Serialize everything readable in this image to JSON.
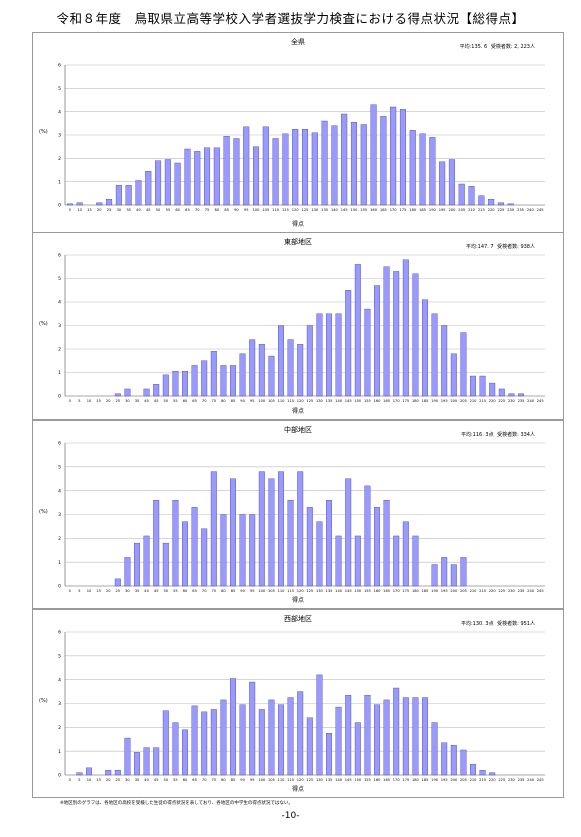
{
  "page": {
    "title": "令和８年度　鳥取県立高等学校入学者選抜学力検査における得点状況【総得点】",
    "footnote": "※地区別のグラフは、各地区の高校を受検した生徒の得点状況を表しており、各地区の中学生の得点状況ではない。",
    "page_number": "-10-"
  },
  "bar_color": "#9999ff",
  "bar_stroke": "#333399",
  "chart_data": [
    {
      "type": "bar",
      "title": "全県",
      "average_label": "平均:135. 6",
      "count_label": "受検者数: 2, 223人",
      "xlabel": "得点",
      "ylabel": "(%)",
      "ylim": [
        0,
        6
      ],
      "yticks": [
        0,
        1,
        2,
        3,
        4,
        5,
        6
      ],
      "categories": [
        "5",
        "10",
        "15",
        "20",
        "25",
        "30",
        "35",
        "40",
        "45",
        "50",
        "55",
        "60",
        "65",
        "70",
        "75",
        "80",
        "85",
        "90",
        "95",
        "100",
        "105",
        "110",
        "115",
        "120",
        "125",
        "130",
        "135",
        "140",
        "145",
        "150",
        "155",
        "160",
        "165",
        "170",
        "175",
        "180",
        "185",
        "190",
        "195",
        "200",
        "205",
        "210",
        "215",
        "220",
        "225",
        "230",
        "235",
        "240",
        "245"
      ],
      "values": [
        0.05,
        0.1,
        0,
        0.1,
        0.25,
        0.85,
        0.85,
        1.05,
        1.45,
        1.9,
        1.95,
        1.8,
        2.4,
        2.3,
        2.45,
        2.45,
        2.95,
        2.85,
        3.35,
        2.5,
        3.35,
        2.85,
        3.05,
        3.25,
        3.25,
        3.1,
        3.6,
        3.4,
        3.9,
        3.55,
        3.45,
        4.3,
        3.8,
        4.2,
        4.1,
        3.2,
        3.05,
        2.9,
        1.85,
        1.95,
        0.9,
        0.8,
        0.4,
        0.25,
        0.1,
        0.05,
        0,
        0,
        0
      ]
    },
    {
      "type": "bar",
      "title": "東部地区",
      "average_label": "平均:147. 7",
      "count_label": "受検者数: 938人",
      "xlabel": "得点",
      "ylabel": "(%)",
      "ylim": [
        0,
        6
      ],
      "yticks": [
        0,
        1,
        2,
        3,
        4,
        5,
        6
      ],
      "categories": [
        "0",
        "5",
        "10",
        "15",
        "20",
        "25",
        "30",
        "35",
        "40",
        "45",
        "50",
        "55",
        "60",
        "65",
        "70",
        "75",
        "80",
        "85",
        "90",
        "95",
        "100",
        "105",
        "110",
        "115",
        "120",
        "125",
        "130",
        "135",
        "140",
        "145",
        "150",
        "155",
        "160",
        "165",
        "170",
        "175",
        "180",
        "185",
        "190",
        "195",
        "200",
        "205",
        "210",
        "215",
        "220",
        "225",
        "230",
        "235",
        "240",
        "245"
      ],
      "values": [
        0,
        0,
        0,
        0,
        0,
        0.1,
        0.3,
        0,
        0.3,
        0.5,
        0.9,
        1.05,
        1.05,
        1.3,
        1.5,
        1.9,
        1.3,
        1.3,
        1.8,
        2.4,
        2.2,
        1.7,
        3.0,
        2.4,
        2.2,
        3.0,
        3.5,
        3.5,
        3.5,
        4.5,
        5.6,
        3.7,
        4.7,
        5.5,
        5.3,
        5.8,
        5.2,
        4.1,
        3.5,
        3.0,
        1.8,
        2.7,
        0.85,
        0.85,
        0.55,
        0.3,
        0.1,
        0.1,
        0,
        0
      ]
    },
    {
      "type": "bar",
      "title": "中部地区",
      "average_label": "平均:116. 3点",
      "count_label": "受検者数: 334人",
      "xlabel": "得点",
      "ylabel": "(%)",
      "ylim": [
        0,
        6
      ],
      "yticks": [
        0,
        1,
        2,
        3,
        4,
        5,
        6
      ],
      "categories": [
        "0",
        "5",
        "10",
        "15",
        "20",
        "25",
        "30",
        "35",
        "40",
        "45",
        "50",
        "55",
        "60",
        "65",
        "70",
        "75",
        "80",
        "85",
        "90",
        "95",
        "100",
        "105",
        "110",
        "115",
        "120",
        "125",
        "130",
        "135",
        "140",
        "145",
        "150",
        "155",
        "160",
        "165",
        "170",
        "175",
        "180",
        "185",
        "190",
        "195",
        "200",
        "205",
        "210",
        "215",
        "220",
        "225",
        "230",
        "235",
        "240",
        "245"
      ],
      "values": [
        0,
        0,
        0,
        0,
        0,
        0.3,
        1.2,
        1.8,
        2.1,
        3.6,
        1.8,
        3.6,
        2.7,
        3.3,
        2.4,
        4.8,
        3.0,
        4.5,
        3.0,
        3.0,
        4.8,
        4.5,
        4.8,
        3.6,
        4.8,
        3.3,
        2.7,
        3.6,
        2.1,
        4.5,
        2.1,
        4.2,
        3.3,
        3.6,
        2.1,
        2.7,
        2.1,
        0,
        0.9,
        1.2,
        0.9,
        1.2,
        0,
        0,
        0,
        0,
        0,
        0,
        0,
        0
      ]
    },
    {
      "type": "bar",
      "title": "西部地区",
      "average_label": "平均:130. 3点",
      "count_label": "受検者数: 951人",
      "xlabel": "得点",
      "ylabel": "(%)",
      "ylim": [
        0,
        6
      ],
      "yticks": [
        0,
        1,
        2,
        3,
        4,
        5,
        6
      ],
      "categories": [
        "0",
        "5",
        "10",
        "15",
        "20",
        "25",
        "30",
        "35",
        "40",
        "45",
        "50",
        "55",
        "60",
        "65",
        "70",
        "75",
        "80",
        "85",
        "90",
        "95",
        "100",
        "105",
        "110",
        "115",
        "120",
        "125",
        "130",
        "135",
        "140",
        "145",
        "150",
        "155",
        "160",
        "165",
        "170",
        "175",
        "180",
        "185",
        "190",
        "195",
        "200",
        "205",
        "210",
        "215",
        "220",
        "225",
        "230",
        "235",
        "240",
        "245"
      ],
      "values": [
        0,
        0.1,
        0.3,
        0,
        0.2,
        0.2,
        1.55,
        0.95,
        1.15,
        1.15,
        2.7,
        2.2,
        1.9,
        2.9,
        2.65,
        2.75,
        3.15,
        4.05,
        2.95,
        3.9,
        2.75,
        3.15,
        2.95,
        3.25,
        3.5,
        2.4,
        4.2,
        1.75,
        2.85,
        3.35,
        2.2,
        3.35,
        2.95,
        3.15,
        3.65,
        3.25,
        3.25,
        3.25,
        2.2,
        1.35,
        1.25,
        1.05,
        0.45,
        0.2,
        0.1,
        0,
        0,
        0,
        0,
        0
      ]
    }
  ]
}
